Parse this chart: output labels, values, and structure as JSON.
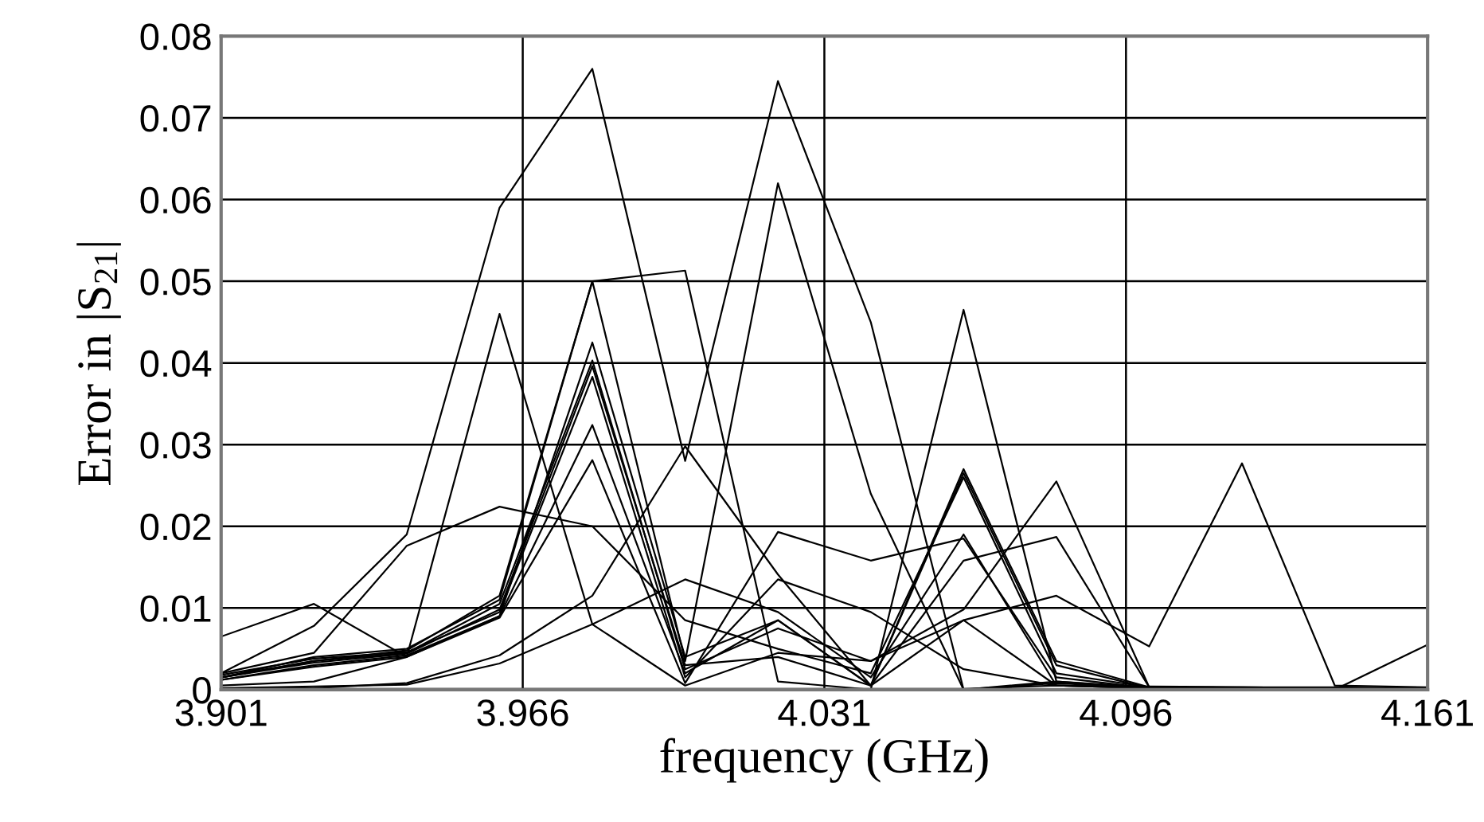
{
  "chart_data": {
    "type": "line",
    "xlabel": "frequency (GHz)",
    "ylabel": "Error in |S$_{21}$|",
    "x": [
      3.901,
      3.921,
      3.941,
      3.961,
      3.981,
      4.001,
      4.021,
      4.041,
      4.061,
      4.081,
      4.101,
      4.121,
      4.141,
      4.161
    ],
    "series": [
      {
        "color": "#000000",
        "values": [
          0.002,
          0.0078,
          0.019,
          0.059,
          0.076,
          0.028,
          0.0745,
          0.045,
          0.0,
          0.001,
          0.0003,
          0.0003,
          0.0002,
          0.0002
        ]
      },
      {
        "color": "#000000",
        "values": [
          0.0015,
          0.004,
          0.005,
          0.011,
          0.05,
          0.0035,
          0.062,
          0.024,
          0.0,
          0.0008,
          0.0002,
          0.0002,
          0.0001,
          0.0001
        ]
      },
      {
        "color": "#000000",
        "values": [
          0.0015,
          0.0035,
          0.0048,
          0.0115,
          0.05,
          0.0513,
          0.001,
          0.0,
          0.0465,
          0.001,
          0.0002,
          0.0002,
          0.0001,
          0.0001
        ]
      },
      {
        "color": "#000000",
        "values": [
          0.0005,
          0.001,
          0.004,
          0.046,
          0.008,
          0.0005,
          0.0045,
          0.0035,
          0.0085,
          0.0005,
          0.0002,
          0.0001,
          0.0001,
          0.0001
        ]
      },
      {
        "color": "#000000",
        "values": [
          0.0065,
          0.0105,
          0.004,
          0.009,
          0.0425,
          0.004,
          0.0085,
          0.0005,
          0.027,
          0.0035,
          0.0003,
          0.0002,
          0.0001,
          0.0001
        ]
      },
      {
        "color": "#000000",
        "values": [
          0.002,
          0.0045,
          0.0176,
          0.0224,
          0.02,
          0.0085,
          0.005,
          0.002,
          0.026,
          0.002,
          0.0003,
          0.0002,
          0.0002,
          0.0001
        ]
      },
      {
        "color": "#000000",
        "values": [
          0.0002,
          0.0004,
          0.0006,
          0.0032,
          0.008,
          0.0135,
          0.0095,
          0.0015,
          0.019,
          0.0005,
          0.0002,
          0.0003,
          0.0002,
          0.0001
        ]
      },
      {
        "color": "#000000",
        "values": [
          0.0001,
          0.0002,
          0.0008,
          0.0042,
          0.0115,
          0.0298,
          0.0141,
          0.0005,
          0.0085,
          0.0115,
          0.0053,
          0.0277,
          0.0005,
          0.0003
        ]
      },
      {
        "color": "#000000",
        "values": [
          0.0015,
          0.0035,
          0.0045,
          0.0105,
          0.0403,
          0.0025,
          0.0075,
          0.0035,
          0.0098,
          0.0255,
          0.0003,
          0.0002,
          0.0001,
          0.0001
        ]
      },
      {
        "color": "#000000",
        "values": [
          0.0015,
          0.0033,
          0.0044,
          0.0098,
          0.0396,
          0.003,
          0.004,
          0.0005,
          0.0158,
          0.0187,
          0.0003,
          0.0002,
          0.0002,
          0.0001
        ]
      },
      {
        "color": "#000000",
        "values": [
          0.0018,
          0.0038,
          0.0046,
          0.0095,
          0.0383,
          0.0015,
          0.0135,
          0.0095,
          0.0025,
          0.0005,
          0.0004,
          0.0003,
          0.0003,
          0.0001
        ]
      },
      {
        "color": "#000000",
        "values": [
          0.0012,
          0.003,
          0.0042,
          0.009,
          0.0324,
          0.002,
          0.0085,
          0.0005,
          0.0265,
          0.003,
          0.0002,
          0.0001,
          0.0001,
          0.0001
        ]
      },
      {
        "color": "#000000",
        "values": [
          0.0012,
          0.0028,
          0.004,
          0.0088,
          0.0281,
          0.0008,
          0.0193,
          0.0158,
          0.0185,
          0.0015,
          0.0002,
          0.0001,
          0.0001,
          0.0001
        ]
      },
      {
        "color": "#000000",
        "values": [
          0.0001,
          0.0001,
          0.0001,
          0.0001,
          0.0001,
          0.0001,
          0.0001,
          0.0001,
          0.0001,
          0.0005,
          0.0002,
          0.0002,
          0.0,
          0.0055
        ]
      }
    ],
    "xlim": [
      3.901,
      4.161
    ],
    "xticks": [
      3.901,
      3.966,
      4.031,
      4.096,
      4.161
    ],
    "ylim": [
      0,
      0.08
    ],
    "yticks": [
      0,
      0.01,
      0.02,
      0.03,
      0.04,
      0.05,
      0.06,
      0.07,
      0.08
    ],
    "grid": true,
    "marker": "none",
    "line_style": "solid"
  }
}
